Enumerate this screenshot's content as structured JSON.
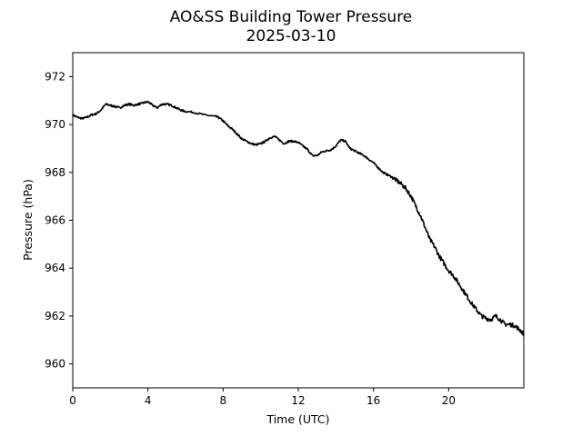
{
  "chart_data": {
    "type": "line",
    "title": "AO&SS Building Tower Pressure",
    "subtitle": "2025-03-10",
    "xlabel": "Time (UTC)",
    "ylabel": "Pressure (hPa)",
    "xlim": [
      0,
      24
    ],
    "ylim": [
      959,
      973
    ],
    "x_ticks": [
      0,
      4,
      8,
      12,
      16,
      20
    ],
    "y_ticks": [
      960,
      962,
      964,
      966,
      968,
      970,
      972
    ],
    "grid": false,
    "legend": "none",
    "line_color": "#000000",
    "series": [
      {
        "x": [
          0,
          0.25,
          0.5,
          0.75,
          1.0,
          1.25,
          1.5,
          1.75,
          2.0,
          2.25,
          2.5,
          2.75,
          3.0,
          3.25,
          3.5,
          3.75,
          4.0,
          4.25,
          4.5,
          4.75,
          5.0,
          5.25,
          5.5,
          5.75,
          6.0,
          6.5,
          7.0,
          7.5,
          7.75,
          8.0,
          8.25,
          8.5,
          8.75,
          9.0,
          9.25,
          9.5,
          9.75,
          10.0,
          10.25,
          10.5,
          10.75,
          11.0,
          11.25,
          11.5,
          11.75,
          12.0,
          12.25,
          12.5,
          12.75,
          13.0,
          13.25,
          13.5,
          13.75,
          14.0,
          14.25,
          14.5,
          14.75,
          15.0,
          15.25,
          15.5,
          15.75,
          16.0,
          16.25,
          16.5,
          16.75,
          17.0,
          17.25,
          17.5,
          17.75,
          18.0,
          18.25,
          18.5,
          18.75,
          19.0,
          19.25,
          19.5,
          19.75,
          20.0,
          20.25,
          20.5,
          20.75,
          21.0,
          21.25,
          21.5,
          21.75,
          22.0,
          22.25,
          22.5,
          22.75,
          23.0,
          23.25,
          23.5,
          23.75,
          24.0
        ],
        "values": [
          970.4,
          970.3,
          970.25,
          970.3,
          970.4,
          970.45,
          970.6,
          970.85,
          970.8,
          970.75,
          970.7,
          970.8,
          970.85,
          970.8,
          970.85,
          970.9,
          970.95,
          970.8,
          970.7,
          970.85,
          970.85,
          970.8,
          970.7,
          970.6,
          970.55,
          970.5,
          970.4,
          970.35,
          970.3,
          970.15,
          969.95,
          969.8,
          969.6,
          969.4,
          969.3,
          969.2,
          969.15,
          969.2,
          969.3,
          969.45,
          969.5,
          969.35,
          969.2,
          969.3,
          969.3,
          969.25,
          969.1,
          968.95,
          968.7,
          968.7,
          968.85,
          968.9,
          968.95,
          969.1,
          969.35,
          969.3,
          969.0,
          968.9,
          968.8,
          968.7,
          968.55,
          968.4,
          968.2,
          968.0,
          967.9,
          967.8,
          967.65,
          967.5,
          967.3,
          967.0,
          966.6,
          966.2,
          965.7,
          965.2,
          964.9,
          964.5,
          964.2,
          963.9,
          963.7,
          963.4,
          963.1,
          962.8,
          962.5,
          962.25,
          962.0,
          961.9,
          961.85,
          962.0,
          961.85,
          961.65,
          961.65,
          961.6,
          961.45,
          961.25
        ]
      }
    ]
  }
}
